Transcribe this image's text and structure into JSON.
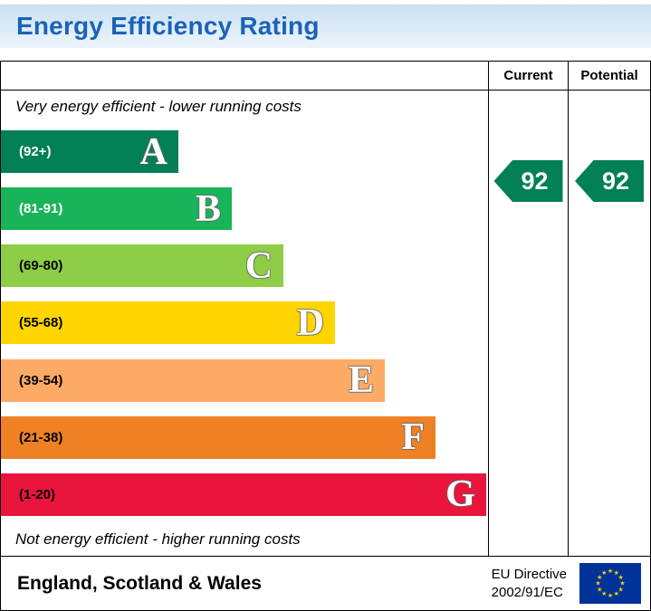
{
  "title_bar": {
    "title": "Energy Efficiency Rating",
    "text_color": "#1b63b7"
  },
  "table_header": {
    "current": "Current",
    "potential": "Potential"
  },
  "notes": {
    "top": "Very energy efficient - lower running costs",
    "bottom": "Not energy efficient - higher running costs"
  },
  "bands": [
    {
      "letter": "A",
      "range": "(92+)",
      "color": "#008054",
      "width_pct": 36.4,
      "range_text_color": "#ffffff"
    },
    {
      "letter": "B",
      "range": "(81-91)",
      "color": "#19b459",
      "width_pct": 47.4,
      "range_text_color": "#ffffff"
    },
    {
      "letter": "C",
      "range": "(69-80)",
      "color": "#8dce46",
      "width_pct": 58.0,
      "range_text_color": "#000000"
    },
    {
      "letter": "D",
      "range": "(55-68)",
      "color": "#ffd500",
      "width_pct": 68.6,
      "range_text_color": "#000000"
    },
    {
      "letter": "E",
      "range": "(39-54)",
      "color": "#fcaa65",
      "width_pct": 78.8,
      "range_text_color": "#000000"
    },
    {
      "letter": "F",
      "range": "(21-38)",
      "color": "#ef8023",
      "width_pct": 89.2,
      "range_text_color": "#000000"
    },
    {
      "letter": "G",
      "range": "(1-20)",
      "color": "#e9153b",
      "width_pct": 99.6,
      "range_text_color": "#000000"
    }
  ],
  "ratings": {
    "current": "92",
    "potential": "92",
    "pointer_color": "#008054"
  },
  "footer": {
    "region": "England, Scotland & Wales",
    "directive_line1": "EU Directive",
    "directive_line2": "2002/91/EC",
    "flag_colors": {
      "field": "#003399",
      "stars": "#ffcc00"
    }
  },
  "chart_data": {
    "type": "bar",
    "title": "Energy Efficiency Rating",
    "categories": [
      "A",
      "B",
      "C",
      "D",
      "E",
      "F",
      "G"
    ],
    "tick_labels": [
      "(92+)",
      "(81-91)",
      "(69-80)",
      "(55-68)",
      "(39-54)",
      "(21-38)",
      "(1-20)"
    ],
    "band_ranges": [
      [
        92,
        100
      ],
      [
        81,
        91
      ],
      [
        69,
        80
      ],
      [
        55,
        68
      ],
      [
        39,
        54
      ],
      [
        21,
        38
      ],
      [
        1,
        20
      ]
    ],
    "bar_colors": [
      "#008054",
      "#19b459",
      "#8dce46",
      "#ffd500",
      "#fcaa65",
      "#ef8023",
      "#e9153b"
    ],
    "bar_width_pct": [
      36.4,
      47.4,
      58.0,
      68.6,
      78.8,
      89.2,
      99.6
    ],
    "series": [
      {
        "name": "Current",
        "values": [
          92
        ]
      },
      {
        "name": "Potential",
        "values": [
          92
        ]
      }
    ],
    "annotations": [
      "Very energy efficient - lower running costs",
      "Not energy efficient - higher running costs"
    ],
    "legend_position": "none",
    "grid": false
  }
}
